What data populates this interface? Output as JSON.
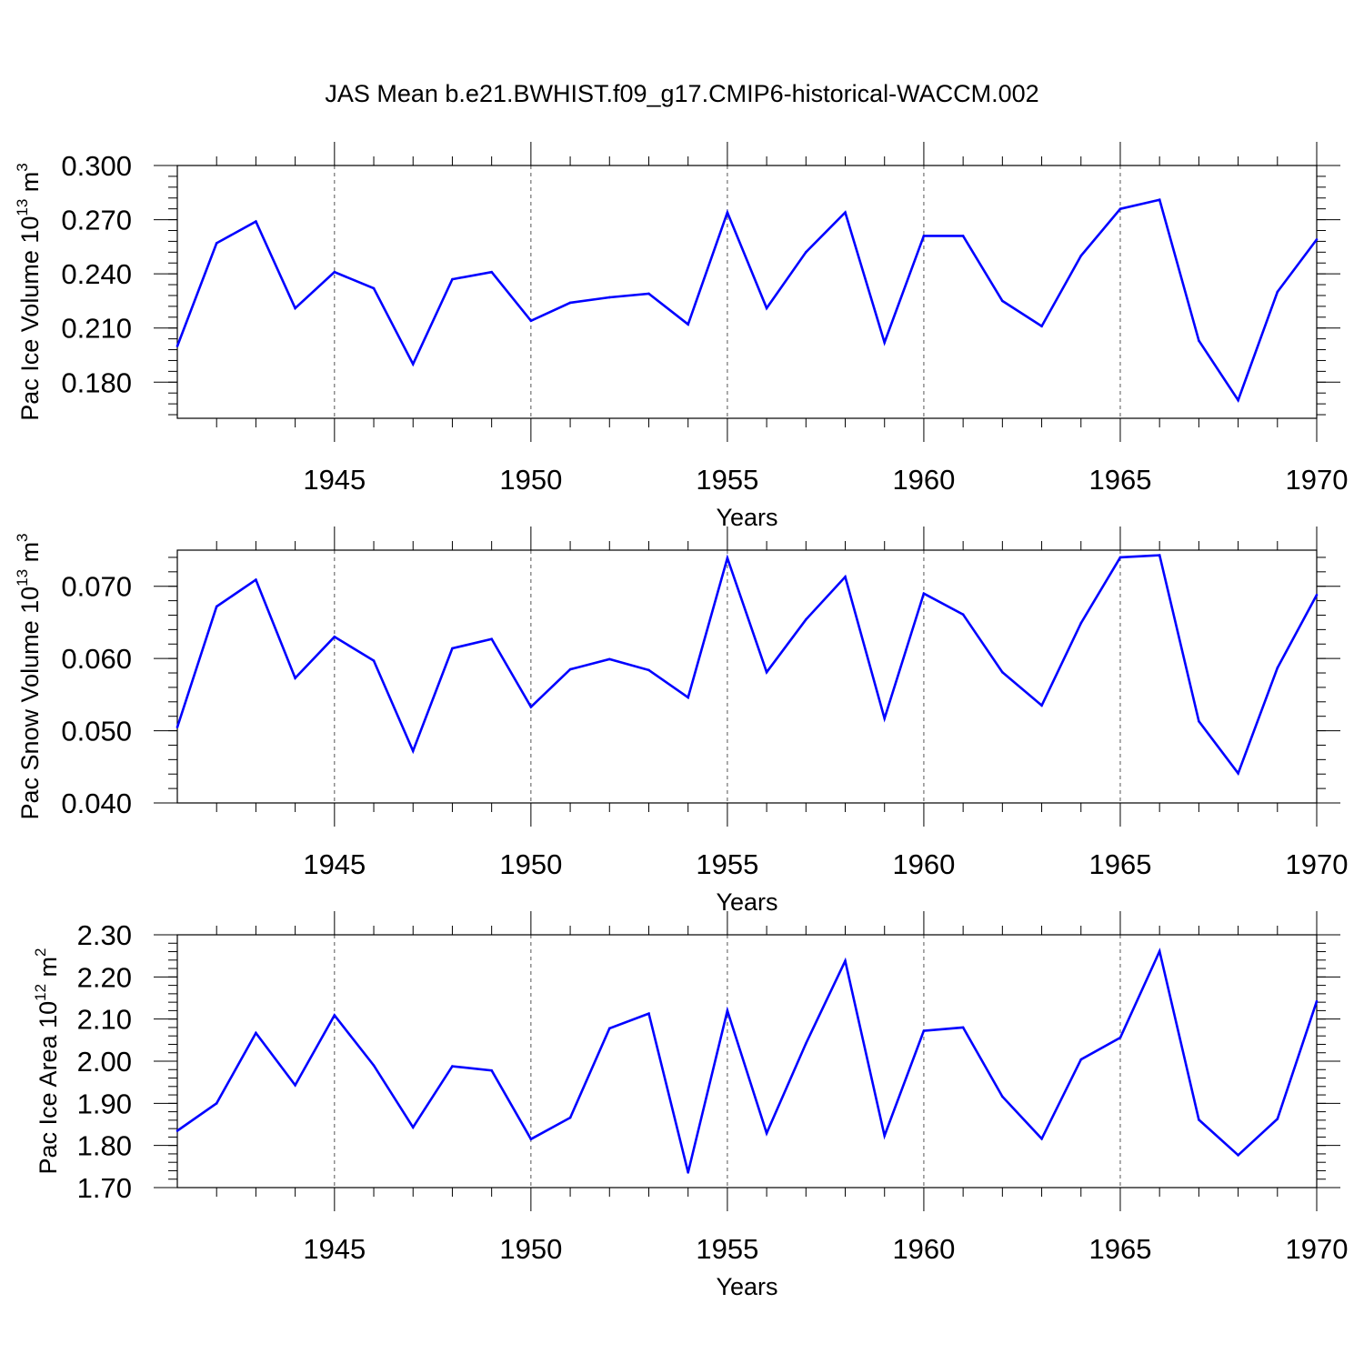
{
  "title": "JAS Mean b.e21.BWHIST.f09_g17.CMIP6-historical-WACCM.002",
  "line_color": "#0000ff",
  "chart_data": [
    {
      "type": "line",
      "ylabel": "Pac Ice Volume 10",
      "ylabel_sup": "13",
      "ylabel_unit": " m",
      "ylabel_unit_sup": "3",
      "xlabel": "Years",
      "xlim": [
        1941,
        1970
      ],
      "ylim": [
        0.16,
        0.3
      ],
      "yticks": [
        "0.180",
        "0.210",
        "0.240",
        "0.270",
        "0.300"
      ],
      "xticks": [
        "1945",
        "1950",
        "1955",
        "1960",
        "1965",
        "1970"
      ],
      "x": [
        1941,
        1942,
        1943,
        1944,
        1945,
        1946,
        1947,
        1948,
        1949,
        1950,
        1951,
        1952,
        1953,
        1954,
        1955,
        1956,
        1957,
        1958,
        1959,
        1960,
        1961,
        1962,
        1963,
        1964,
        1965,
        1966,
        1967,
        1968,
        1969,
        1970
      ],
      "y": [
        0.2,
        0.257,
        0.269,
        0.221,
        0.241,
        0.232,
        0.19,
        0.237,
        0.241,
        0.214,
        0.224,
        0.227,
        0.229,
        0.212,
        0.274,
        0.221,
        0.252,
        0.274,
        0.202,
        0.261,
        0.261,
        0.225,
        0.211,
        0.25,
        0.276,
        0.281,
        0.203,
        0.17,
        0.23,
        0.259
      ]
    },
    {
      "type": "line",
      "ylabel": "Pac Snow Volume 10",
      "ylabel_sup": "13",
      "ylabel_unit": " m",
      "ylabel_unit_sup": "3",
      "xlabel": "Years",
      "xlim": [
        1941,
        1970
      ],
      "ylim": [
        0.04,
        0.075
      ],
      "yticks": [
        "0.040",
        "0.050",
        "0.060",
        "0.070"
      ],
      "xticks": [
        "1945",
        "1950",
        "1955",
        "1960",
        "1965",
        "1970"
      ],
      "x": [
        1941,
        1942,
        1943,
        1944,
        1945,
        1946,
        1947,
        1948,
        1949,
        1950,
        1951,
        1952,
        1953,
        1954,
        1955,
        1956,
        1957,
        1958,
        1959,
        1960,
        1961,
        1962,
        1963,
        1964,
        1965,
        1966,
        1967,
        1968,
        1969,
        1970
      ],
      "y": [
        0.0505,
        0.0672,
        0.0709,
        0.0573,
        0.063,
        0.0597,
        0.0472,
        0.0614,
        0.0627,
        0.0533,
        0.0585,
        0.0599,
        0.0584,
        0.0546,
        0.0739,
        0.0581,
        0.0654,
        0.0713,
        0.0517,
        0.069,
        0.0661,
        0.0581,
        0.0535,
        0.0649,
        0.074,
        0.0743,
        0.0513,
        0.0441,
        0.0587,
        0.0688
      ]
    },
    {
      "type": "line",
      "ylabel": "Pac Ice Area 10",
      "ylabel_sup": "12",
      "ylabel_unit": " m",
      "ylabel_unit_sup": "2",
      "xlabel": "Years",
      "xlim": [
        1941,
        1970
      ],
      "ylim": [
        1.7,
        2.3
      ],
      "yticks": [
        "1.70",
        "1.80",
        "1.90",
        "2.00",
        "2.10",
        "2.20",
        "2.30"
      ],
      "xticks": [
        "1945",
        "1950",
        "1955",
        "1960",
        "1965",
        "1970"
      ],
      "x": [
        1941,
        1942,
        1943,
        1944,
        1945,
        1946,
        1947,
        1948,
        1949,
        1950,
        1951,
        1952,
        1953,
        1954,
        1955,
        1956,
        1957,
        1958,
        1959,
        1960,
        1961,
        1962,
        1963,
        1964,
        1965,
        1966,
        1967,
        1968,
        1969,
        1970
      ],
      "y": [
        1.835,
        1.9,
        2.067,
        1.943,
        2.109,
        1.99,
        1.843,
        1.988,
        1.978,
        1.815,
        1.866,
        2.078,
        2.113,
        1.736,
        2.12,
        1.829,
        2.042,
        2.238,
        1.823,
        2.072,
        2.08,
        1.916,
        1.816,
        2.004,
        2.056,
        2.261,
        1.861,
        1.777,
        1.863,
        2.142
      ]
    }
  ]
}
